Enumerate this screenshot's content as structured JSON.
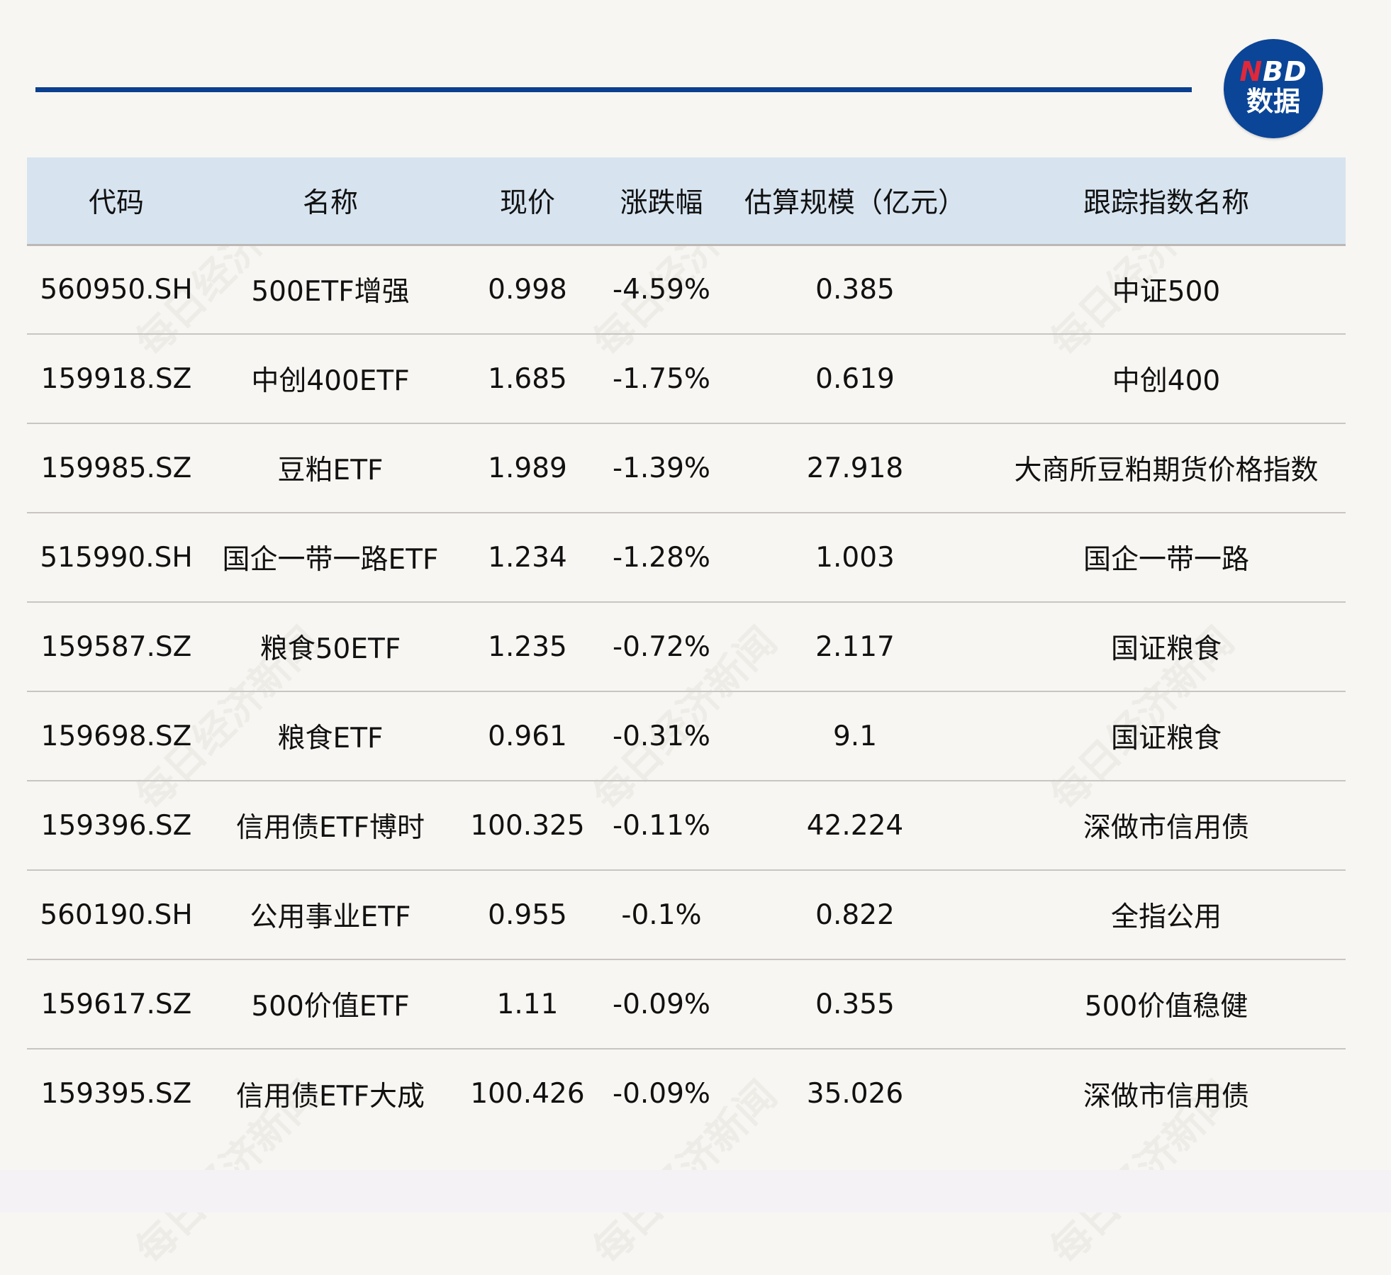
{
  "logo": {
    "text_n": "N",
    "text_bd": "BD",
    "text_cn": "数据"
  },
  "watermark": "每日经济新闻",
  "colors": {
    "accent": "#0b3f8f",
    "header_bg": "#d7e4f0",
    "logo_red": "#e0283a"
  },
  "table": {
    "headers": [
      "代码",
      "名称",
      "现价",
      "涨跌幅",
      "估算规模（亿元）",
      "跟踪指数名称"
    ],
    "rows": [
      [
        "560950.SH",
        "500ETF增强",
        "0.998",
        "-4.59%",
        "0.385",
        "中证500"
      ],
      [
        "159918.SZ",
        "中创400ETF",
        "1.685",
        "-1.75%",
        "0.619",
        "中创400"
      ],
      [
        "159985.SZ",
        "豆粕ETF",
        "1.989",
        "-1.39%",
        "27.918",
        "大商所豆粕期货价格指数"
      ],
      [
        "515990.SH",
        "国企一带一路ETF",
        "1.234",
        "-1.28%",
        "1.003",
        "国企一带一路"
      ],
      [
        "159587.SZ",
        "粮食50ETF",
        "1.235",
        "-0.72%",
        "2.117",
        "国证粮食"
      ],
      [
        "159698.SZ",
        "粮食ETF",
        "0.961",
        "-0.31%",
        "9.1",
        "国证粮食"
      ],
      [
        "159396.SZ",
        "信用债ETF博时",
        "100.325",
        "-0.11%",
        "42.224",
        "深做市信用债"
      ],
      [
        "560190.SH",
        "公用事业ETF",
        "0.955",
        "-0.1%",
        "0.822",
        "全指公用"
      ],
      [
        "159617.SZ",
        "500价值ETF",
        "1.11",
        "-0.09%",
        "0.355",
        "500价值稳健"
      ],
      [
        "159395.SZ",
        "信用债ETF大成",
        "100.426",
        "-0.09%",
        "35.026",
        "深做市信用债"
      ]
    ]
  }
}
